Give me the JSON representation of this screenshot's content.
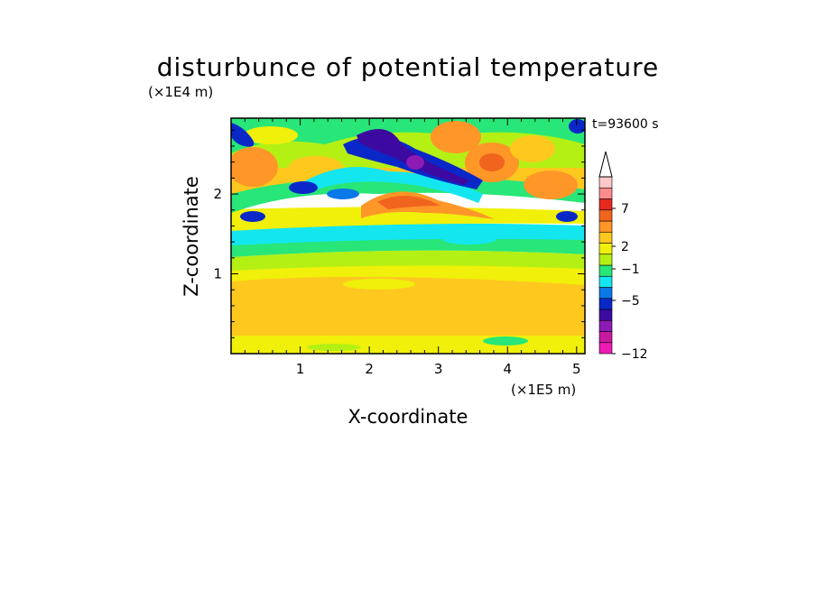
{
  "chart_data": {
    "type": "heatmap",
    "title": "disturbunce of potential temperature",
    "xlabel": "X-coordinate",
    "ylabel": "Z-coordinate",
    "x_scale_label": "(×1E5 m)",
    "y_scale_label": "(×1E4 m)",
    "time_label": "t=93600 s",
    "xlim": [
      0,
      5.12
    ],
    "ylim": [
      0,
      2.95
    ],
    "x_ticks": [
      "1",
      "2",
      "3",
      "4",
      "5"
    ],
    "y_ticks": [
      "1",
      "2"
    ],
    "colorbar": {
      "labeled_levels": [
        "7",
        "2",
        "−1",
        "−5",
        "−12"
      ],
      "extend": "max",
      "colors": [
        "#f01ab4",
        "#c81aa0",
        "#8c1ab4",
        "#3c0aa0",
        "#0a28c8",
        "#0a78e6",
        "#14e6f0",
        "#28e678",
        "#b4f014",
        "#f0f00a",
        "#ffc81e",
        "#ff9628",
        "#f0641e",
        "#e6281e",
        "#ff8c8c",
        "#ffc8c8"
      ]
    },
    "grid": false
  }
}
